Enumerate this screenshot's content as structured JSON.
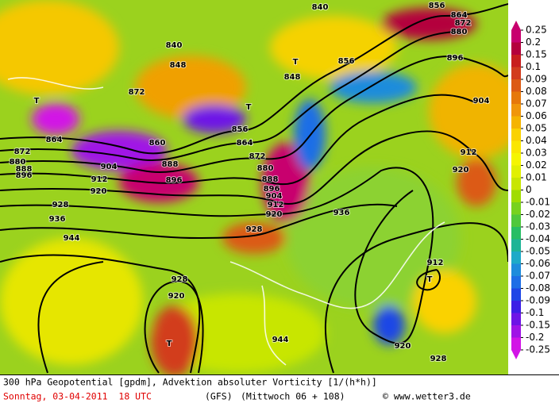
{
  "footer": {
    "line1": "300 hPa Geopotential [gpdm], Advektion absoluter Vorticity [1/(h*h)]",
    "date": "Sonntag, 03-04-2011  18 UTC",
    "model": "(GFS)",
    "forecast": "(Mittwoch 06 + 108)",
    "credit": "© www.wetter3.de"
  },
  "colorbar": {
    "labels": [
      0.25,
      0.2,
      0.15,
      0.1,
      0.09,
      0.08,
      0.07,
      0.06,
      0.05,
      0.04,
      0.03,
      0.02,
      0.01,
      0,
      -0.01,
      -0.02,
      -0.03,
      -0.04,
      -0.05,
      -0.06,
      -0.07,
      -0.08,
      -0.09,
      -0.1,
      -0.15,
      -0.2,
      -0.25
    ],
    "colors": [
      "#c8006e",
      "#b4003c",
      "#c81e1e",
      "#d23c1e",
      "#dc5a14",
      "#e6780a",
      "#f0960a",
      "#f5b400",
      "#fad200",
      "#fae600",
      "#f5f500",
      "#e1f000",
      "#c8e600",
      "#a0dc00",
      "#78d21e",
      "#50c83c",
      "#28be64",
      "#1eb496",
      "#1eaac8",
      "#1e8cdc",
      "#1e6ee6",
      "#1e46e6",
      "#3c1ee6",
      "#6e14e6",
      "#a014e6",
      "#d214e6"
    ]
  },
  "contour_labels": [
    "864",
    "880",
    "888",
    "896",
    "912",
    "920",
    "928",
    "936",
    "944",
    "872",
    "856",
    "864",
    "872",
    "880",
    "888",
    "896",
    "904",
    "912",
    "920",
    "928",
    "936",
    "944",
    "928",
    "920",
    "912",
    "920",
    "928",
    "912",
    "920",
    "904",
    "896",
    "880",
    "872",
    "864",
    "856",
    "840",
    "848",
    "856",
    "840",
    "848",
    "872",
    "860",
    "888",
    "896",
    "904"
  ],
  "lows": [
    "T",
    "T",
    "T",
    "T",
    "T"
  ]
}
